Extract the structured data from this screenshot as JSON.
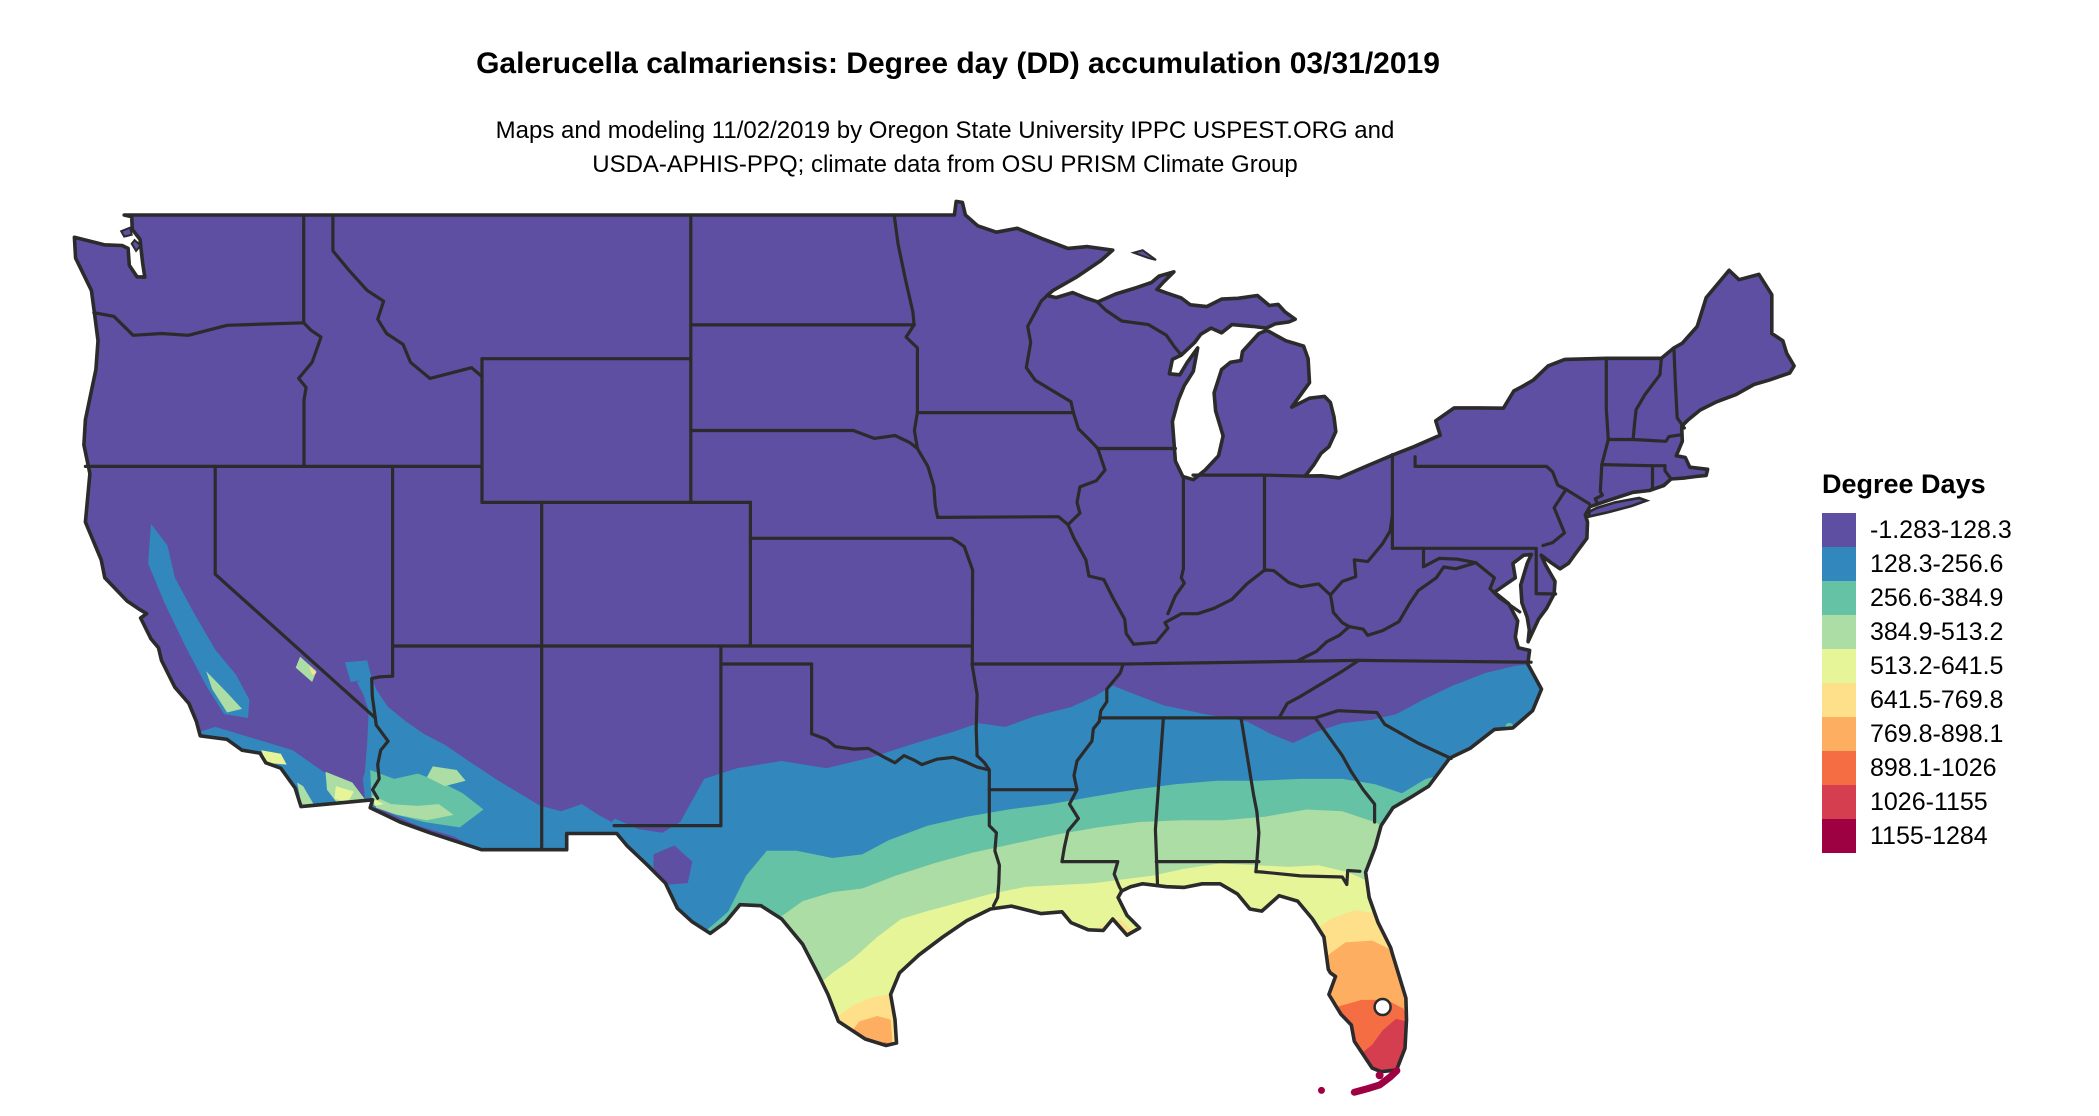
{
  "figure": {
    "title": "Galerucella calmariensis: Degree day (DD) accumulation 03/31/2019",
    "subtitle_line1": "Maps and modeling 11/02/2019 by Oregon State University IPPC USPEST.ORG and",
    "subtitle_line2": "USDA-APHIS-PPQ; climate data from OSU PRISM Climate Group"
  },
  "legend": {
    "title": "Degree Days",
    "classes": [
      {
        "label": "-1.283-128.3",
        "color": "#5e4fa2"
      },
      {
        "label": "128.3-256.6",
        "color": "#3288bd"
      },
      {
        "label": "256.6-384.9",
        "color": "#66c2a5"
      },
      {
        "label": "384.9-513.2",
        "color": "#abdda4"
      },
      {
        "label": "513.2-641.5",
        "color": "#e6f598"
      },
      {
        "label": "641.5-769.8",
        "color": "#fee08b"
      },
      {
        "label": "769.8-898.1",
        "color": "#fdae61"
      },
      {
        "label": "898.1-1026",
        "color": "#f46d43"
      },
      {
        "label": "1026-1155",
        "color": "#d53e4f"
      },
      {
        "label": "1155-1284",
        "color": "#9e0142"
      }
    ]
  },
  "map": {
    "type": "choropleth-raster",
    "region": "contiguous United States",
    "variable": "Degree day (DD) accumulation",
    "date": "03/31/2019",
    "border_color": "#2b2b2b",
    "water_color": "#ffffff"
  }
}
